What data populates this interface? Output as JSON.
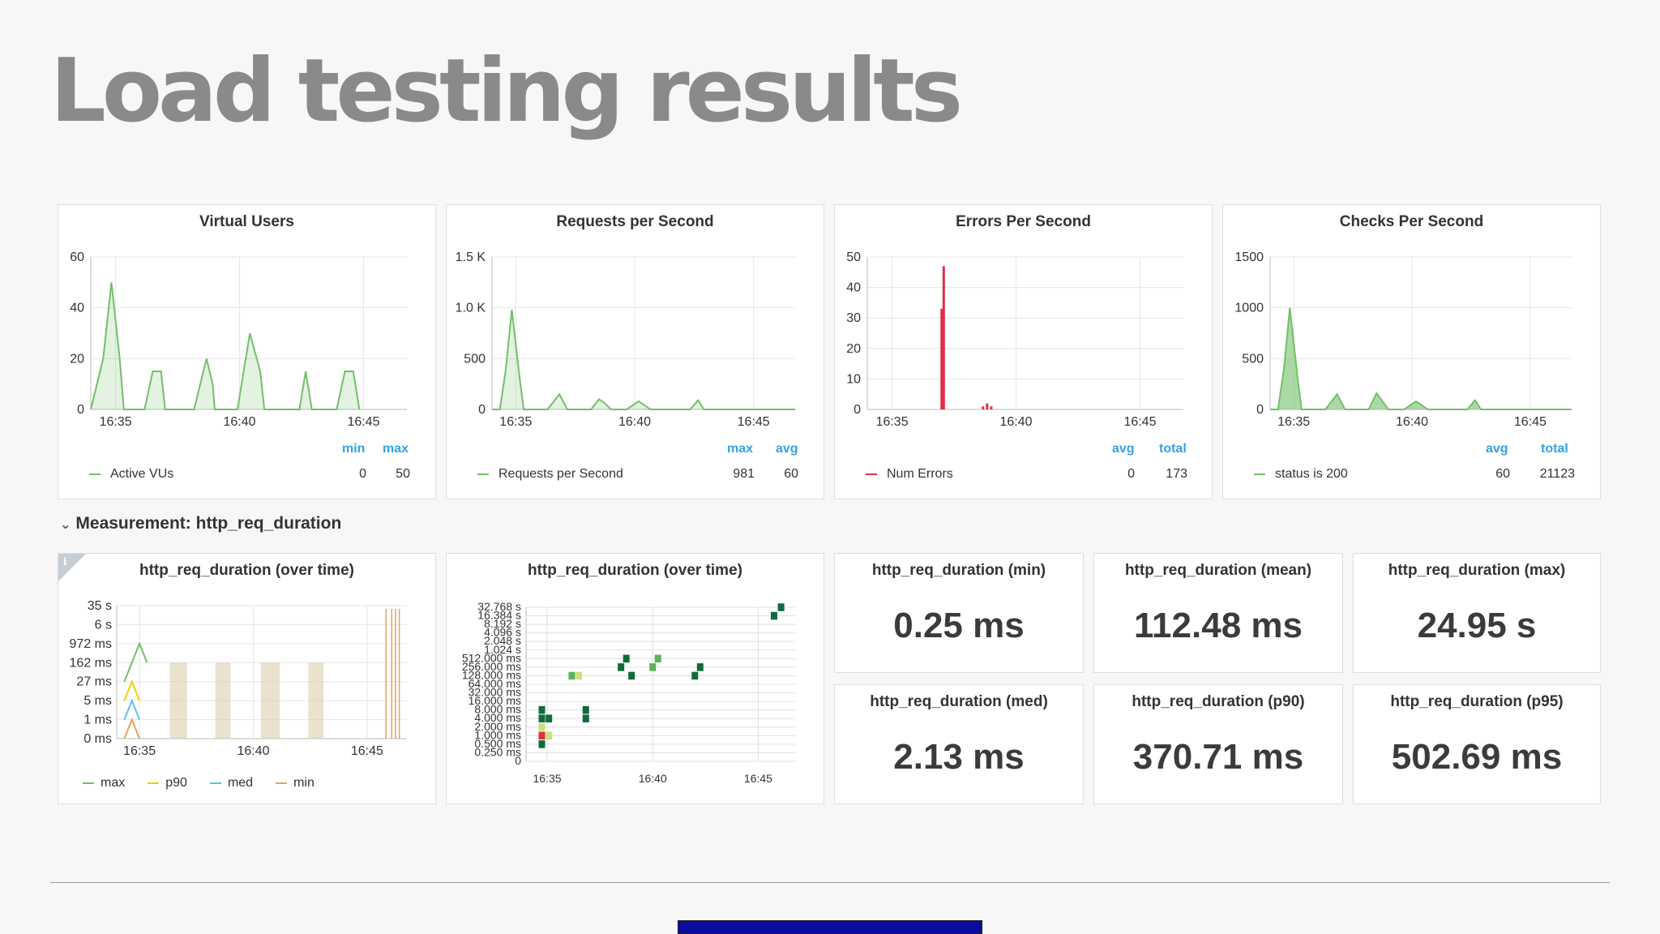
{
  "title": "Load testing results",
  "colors": {
    "green": "#73bf69",
    "red": "#e02f44",
    "blue_legend": "#33a2e5",
    "heat_dark": "#0f6b3a",
    "heat_mid": "#5bb35a",
    "heat_light": "#c8e27a",
    "heat_hot": "#e0303a"
  },
  "section": {
    "label": "Measurement: http_req_duration",
    "chevron_icon": "chevron-down-icon"
  },
  "panels": {
    "virtual_users": {
      "title": "Virtual Users",
      "y_ticks": [
        "60",
        "40",
        "20",
        "0"
      ],
      "x_ticks": [
        "16:35",
        "16:40",
        "16:45"
      ],
      "legend_heads": [
        "min",
        "max"
      ],
      "legend_series": "Active VUs",
      "legend_values": [
        "0",
        "50"
      ]
    },
    "requests": {
      "title": "Requests per Second",
      "y_ticks": [
        "1.5 K",
        "1.0 K",
        "500",
        "0"
      ],
      "x_ticks": [
        "16:35",
        "16:40",
        "16:45"
      ],
      "legend_heads": [
        "max",
        "avg"
      ],
      "legend_series": "Requests per Second",
      "legend_values": [
        "981",
        "60"
      ]
    },
    "errors": {
      "title": "Errors Per Second",
      "y_ticks": [
        "50",
        "40",
        "30",
        "20",
        "10",
        "0"
      ],
      "x_ticks": [
        "16:35",
        "16:40",
        "16:45"
      ],
      "legend_heads": [
        "avg",
        "total"
      ],
      "legend_series": "Num Errors",
      "legend_values": [
        "0",
        "173"
      ]
    },
    "checks": {
      "title": "Checks Per Second",
      "y_ticks": [
        "1500",
        "1000",
        "500",
        "0"
      ],
      "x_ticks": [
        "16:35",
        "16:40",
        "16:45"
      ],
      "legend_heads": [
        "avg",
        "total"
      ],
      "legend_series": "status is 200",
      "legend_values": [
        "60",
        "21123"
      ]
    },
    "duration_line": {
      "title": "http_req_duration (over time)",
      "info_icon": "info-icon",
      "info_label": "i",
      "y_ticks": [
        "35 s",
        "6 s",
        "972 ms",
        "162 ms",
        "27 ms",
        "5 ms",
        "1 ms",
        "0 ms"
      ],
      "x_ticks": [
        "16:35",
        "16:40",
        "16:45"
      ],
      "legend": [
        {
          "name": "max",
          "color": "#73bf69"
        },
        {
          "name": "p90",
          "color": "#f2cc0c"
        },
        {
          "name": "med",
          "color": "#5bc1e8"
        },
        {
          "name": "min",
          "color": "#e0a463"
        }
      ]
    },
    "duration_heatmap": {
      "title": "http_req_duration (over time)",
      "y_ticks": [
        "32.768 s",
        "16.384 s",
        "8.192 s",
        "4.096 s",
        "2.048 s",
        "1.024 s",
        "512.000 ms",
        "256.000 ms",
        "128.000 ms",
        "64.000 ms",
        "32.000 ms",
        "16.000 ms",
        "8.000 ms",
        "4.000 ms",
        "2.000 ms",
        "1.000 ms",
        "0.500 ms",
        "0.250 ms",
        "0"
      ],
      "x_ticks": [
        "16:35",
        "16:40",
        "16:45"
      ]
    }
  },
  "stats": [
    {
      "label": "http_req_duration (min)",
      "value": "0.25 ms"
    },
    {
      "label": "http_req_duration (mean)",
      "value": "112.48 ms"
    },
    {
      "label": "http_req_duration (max)",
      "value": "24.95 s"
    },
    {
      "label": "http_req_duration (med)",
      "value": "2.13 ms"
    },
    {
      "label": "http_req_duration (p90)",
      "value": "370.71 ms"
    },
    {
      "label": "http_req_duration (p95)",
      "value": "502.69 ms"
    }
  ],
  "chart_data": [
    {
      "type": "area",
      "title": "Virtual Users",
      "x_range": [
        "16:34",
        "16:46:45"
      ],
      "ylim": [
        0,
        60
      ],
      "grid": true,
      "series": [
        {
          "name": "Active VUs",
          "points": [
            [
              "16:34:00",
              0
            ],
            [
              "16:34:30",
              20
            ],
            [
              "16:34:50",
              50
            ],
            [
              "16:35:10",
              20
            ],
            [
              "16:35:20",
              0
            ],
            [
              "16:36:10",
              0
            ],
            [
              "16:36:30",
              15
            ],
            [
              "16:36:50",
              15
            ],
            [
              "16:37:00",
              0
            ],
            [
              "16:38:10",
              0
            ],
            [
              "16:38:40",
              20
            ],
            [
              "16:38:55",
              10
            ],
            [
              "16:39:00",
              0
            ],
            [
              "16:39:55",
              0
            ],
            [
              "16:40:25",
              30
            ],
            [
              "16:40:50",
              15
            ],
            [
              "16:41:00",
              0
            ],
            [
              "16:42:25",
              0
            ],
            [
              "16:42:40",
              15
            ],
            [
              "16:42:55",
              0
            ],
            [
              "16:43:55",
              0
            ],
            [
              "16:44:15",
              15
            ],
            [
              "16:44:35",
              15
            ],
            [
              "16:44:50",
              0
            ]
          ]
        }
      ]
    },
    {
      "type": "area",
      "title": "Requests per Second",
      "x_range": [
        "16:34",
        "16:46:45"
      ],
      "ylim": [
        0,
        1500
      ],
      "grid": true,
      "series": [
        {
          "name": "Requests per Second",
          "points": [
            [
              "16:34:00",
              0
            ],
            [
              "16:34:20",
              0
            ],
            [
              "16:34:35",
              400
            ],
            [
              "16:34:50",
              981
            ],
            [
              "16:35:10",
              300
            ],
            [
              "16:35:20",
              0
            ],
            [
              "16:36:20",
              0
            ],
            [
              "16:36:50",
              150
            ],
            [
              "16:37:10",
              0
            ],
            [
              "16:38:10",
              0
            ],
            [
              "16:38:30",
              100
            ],
            [
              "16:38:45",
              60
            ],
            [
              "16:39:00",
              0
            ],
            [
              "16:39:40",
              0
            ],
            [
              "16:40:10",
              80
            ],
            [
              "16:40:40",
              0
            ],
            [
              "16:42:20",
              0
            ],
            [
              "16:42:40",
              90
            ],
            [
              "16:42:55",
              0
            ],
            [
              "16:46:45",
              0
            ]
          ]
        }
      ]
    },
    {
      "type": "bar",
      "title": "Errors Per Second",
      "x_range": [
        "16:34",
        "16:46:45"
      ],
      "ylim": [
        0,
        50
      ],
      "grid": true,
      "series": [
        {
          "name": "Num Errors",
          "points": [
            [
              "16:37:00",
              33
            ],
            [
              "16:37:05",
              47
            ],
            [
              "16:38:40",
              1
            ],
            [
              "16:38:50",
              2
            ],
            [
              "16:39:00",
              1
            ]
          ]
        }
      ]
    },
    {
      "type": "area",
      "title": "Checks Per Second",
      "x_range": [
        "16:34",
        "16:46:45"
      ],
      "ylim": [
        0,
        1500
      ],
      "grid": true,
      "series": [
        {
          "name": "status is 200",
          "points": [
            [
              "16:34:00",
              0
            ],
            [
              "16:34:20",
              0
            ],
            [
              "16:34:35",
              400
            ],
            [
              "16:34:50",
              1000
            ],
            [
              "16:35:10",
              300
            ],
            [
              "16:35:20",
              0
            ],
            [
              "16:36:20",
              0
            ],
            [
              "16:36:50",
              150
            ],
            [
              "16:37:10",
              0
            ],
            [
              "16:38:10",
              0
            ],
            [
              "16:38:30",
              160
            ],
            [
              "16:38:45",
              80
            ],
            [
              "16:39:00",
              0
            ],
            [
              "16:39:40",
              0
            ],
            [
              "16:40:10",
              80
            ],
            [
              "16:40:40",
              0
            ],
            [
              "16:42:20",
              0
            ],
            [
              "16:42:40",
              90
            ],
            [
              "16:42:55",
              0
            ],
            [
              "16:46:45",
              0
            ]
          ]
        }
      ]
    },
    {
      "type": "line",
      "title": "http_req_duration (over time)",
      "yscale": "log",
      "x_range": [
        "16:34",
        "16:46:45"
      ],
      "series": [
        {
          "name": "max",
          "points": [
            [
              "16:34:20",
              "27 ms"
            ],
            [
              "16:34:40",
              "162 ms"
            ],
            [
              "16:35:00",
              "972 ms"
            ],
            [
              "16:35:20",
              "162 ms"
            ]
          ]
        },
        {
          "name": "p90",
          "points": [
            [
              "16:34:20",
              "5 ms"
            ],
            [
              "16:34:40",
              "27 ms"
            ],
            [
              "16:35:00",
              "5 ms"
            ]
          ]
        },
        {
          "name": "med",
          "points": [
            [
              "16:34:20",
              "1 ms"
            ],
            [
              "16:34:40",
              "5 ms"
            ],
            [
              "16:35:00",
              "1 ms"
            ]
          ]
        },
        {
          "name": "min",
          "points": [
            [
              "16:34:20",
              "0 ms"
            ],
            [
              "16:34:40",
              "1 ms"
            ],
            [
              "16:35:00",
              "0 ms"
            ]
          ]
        }
      ]
    },
    {
      "type": "heatmap",
      "title": "http_req_duration (over time)",
      "x_range": [
        "16:34",
        "16:46:45"
      ],
      "y_buckets": [
        "0",
        "0.250 ms",
        "0.500 ms",
        "1.000 ms",
        "2.000 ms",
        "4.000 ms",
        "8.000 ms",
        "16.000 ms",
        "32.000 ms",
        "64.000 ms",
        "128.000 ms",
        "256.000 ms",
        "512.000 ms",
        "1.024 s",
        "2.048 s",
        "4.096 s",
        "8.192 s",
        "16.384 s",
        "32.768 s"
      ],
      "cells": [
        [
          "16:34:45",
          "1.000 ms",
          "hot"
        ],
        [
          "16:34:45",
          "2.000 ms",
          "light"
        ],
        [
          "16:34:45",
          "4.000 ms",
          "dark"
        ],
        [
          "16:34:45",
          "8.000 ms",
          "dark"
        ],
        [
          "16:34:45",
          "0.500 ms",
          "dark"
        ],
        [
          "16:35:05",
          "1.000 ms",
          "light"
        ],
        [
          "16:35:05",
          "4.000 ms",
          "dark"
        ],
        [
          "16:36:10",
          "128.000 ms",
          "mid"
        ],
        [
          "16:36:30",
          "128.000 ms",
          "light"
        ],
        [
          "16:36:50",
          "4.000 ms",
          "dark"
        ],
        [
          "16:36:50",
          "8.000 ms",
          "dark"
        ],
        [
          "16:38:30",
          "256.000 ms",
          "dark"
        ],
        [
          "16:38:45",
          "512.000 ms",
          "dark"
        ],
        [
          "16:39:00",
          "128.000 ms",
          "dark"
        ],
        [
          "16:40:00",
          "256.000 ms",
          "mid"
        ],
        [
          "16:40:15",
          "512.000 ms",
          "mid"
        ],
        [
          "16:42:00",
          "128.000 ms",
          "dark"
        ],
        [
          "16:42:15",
          "256.000 ms",
          "dark"
        ],
        [
          "16:45:45",
          "16.384 s",
          "dark"
        ],
        [
          "16:46:05",
          "32.768 s",
          "dark"
        ]
      ]
    }
  ]
}
